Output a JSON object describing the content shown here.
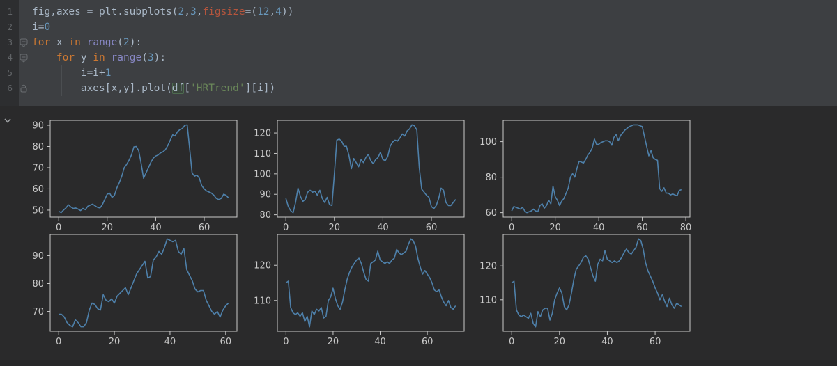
{
  "colors": {
    "cell_background": "#3D3F42",
    "output_background": "#2A2A2B",
    "gutter_background": "#2D2E30",
    "line_number": "#606366",
    "code_default": "#A9B7C6",
    "code_keyword": "#CC7832",
    "code_number": "#6897BB",
    "code_builtin": "#8888C6",
    "code_named_param": "#B4553D",
    "code_string": "#6A8759",
    "plot_line": "#4E80AA",
    "plot_spine": "#C9C9C9",
    "plot_tick_label": "#C9C9C9",
    "divider": "#4F5052",
    "chevron": "#9A9DA0",
    "fold_icon": "#6A6E71"
  },
  "editor": {
    "code_lines": [
      {
        "num": "1",
        "fold": "",
        "tokens": [
          {
            "t": "fig,axes = plt.subplots(",
            "c": "d"
          },
          {
            "t": "2",
            "c": "n"
          },
          {
            "t": ",",
            "c": "d"
          },
          {
            "t": "3",
            "c": "n"
          },
          {
            "t": ",",
            "c": "d"
          },
          {
            "t": "figsize",
            "c": "p"
          },
          {
            "t": "=(",
            "c": "d"
          },
          {
            "t": "12",
            "c": "n"
          },
          {
            "t": ",",
            "c": "d"
          },
          {
            "t": "4",
            "c": "n"
          },
          {
            "t": "))",
            "c": "d"
          }
        ]
      },
      {
        "num": "2",
        "fold": "",
        "tokens": [
          {
            "t": "i=",
            "c": "d"
          },
          {
            "t": "0",
            "c": "n"
          }
        ]
      },
      {
        "num": "3",
        "fold": "fold-collapse",
        "tokens": [
          {
            "t": "for",
            "c": "k"
          },
          {
            "t": " x ",
            "c": "d"
          },
          {
            "t": "in",
            "c": "k"
          },
          {
            "t": " ",
            "c": "d"
          },
          {
            "t": "range",
            "c": "b"
          },
          {
            "t": "(",
            "c": "d"
          },
          {
            "t": "2",
            "c": "n"
          },
          {
            "t": "):",
            "c": "d"
          }
        ]
      },
      {
        "num": "4",
        "fold": "fold-collapse",
        "tokens": [
          {
            "t": "    ",
            "c": "d"
          },
          {
            "t": "for",
            "c": "k"
          },
          {
            "t": " y ",
            "c": "d"
          },
          {
            "t": "in",
            "c": "k"
          },
          {
            "t": " ",
            "c": "d"
          },
          {
            "t": "range",
            "c": "b"
          },
          {
            "t": "(",
            "c": "d"
          },
          {
            "t": "3",
            "c": "n"
          },
          {
            "t": "):",
            "c": "d"
          }
        ]
      },
      {
        "num": "5",
        "fold": "",
        "tokens": [
          {
            "t": "        i=i+",
            "c": "d"
          },
          {
            "t": "1",
            "c": "n"
          }
        ]
      },
      {
        "num": "6",
        "fold": "fold-end",
        "tokens": [
          {
            "t": "        axes[x,y].plot(",
            "c": "d"
          },
          {
            "t": "df",
            "c": "hl"
          },
          {
            "t": "[",
            "c": "d"
          },
          {
            "t": "'HRTrend'",
            "c": "s"
          },
          {
            "t": "][i])",
            "c": "d"
          }
        ]
      }
    ]
  },
  "chart_data": [
    {
      "name": "subplot-1",
      "type": "line",
      "row": 0,
      "col": 0,
      "x_ticks": [
        0,
        20,
        40,
        60
      ],
      "y_ticks": [
        50,
        60,
        70,
        80,
        90
      ],
      "xlim": [
        -3.5,
        73.5
      ],
      "ylim": [
        46.7,
        92.3
      ],
      "values": [
        49.5,
        48.8,
        50,
        51,
        52.5,
        51.5,
        50.8,
        51,
        50.5,
        49.8,
        50.8,
        50.2,
        51.8,
        52.3,
        52.8,
        52,
        51.3,
        51,
        52.5,
        55,
        57.5,
        58,
        56,
        57,
        60.5,
        63,
        66,
        70,
        71.5,
        73.5,
        76,
        79.8,
        80,
        78,
        72,
        65,
        67.5,
        70,
        72.5,
        74.5,
        75.5,
        76,
        77,
        77.5,
        78.5,
        80.5,
        83,
        85.5,
        85,
        87,
        88,
        88.5,
        90,
        90.2,
        79,
        67.5,
        66,
        66.5,
        65,
        61.5,
        60,
        59,
        58.5,
        58,
        57,
        55.5,
        55,
        55.5,
        57.5,
        57,
        55.8
      ]
    },
    {
      "name": "subplot-2",
      "type": "line",
      "row": 0,
      "col": 1,
      "x_ticks": [
        0,
        20,
        40,
        60
      ],
      "y_ticks": [
        80,
        90,
        100,
        110,
        120
      ],
      "xlim": [
        -3.5,
        73.5
      ],
      "ylim": [
        78.85,
        126.15
      ],
      "values": [
        88,
        84,
        82,
        81,
        86,
        93,
        89,
        86.5,
        87.5,
        91,
        92,
        91,
        91.5,
        89.5,
        92,
        88,
        86,
        88.5,
        85,
        84.5,
        100,
        116.5,
        117,
        116,
        113.5,
        113.5,
        109,
        102.5,
        107.5,
        105.5,
        103.5,
        107,
        105.5,
        108,
        109.5,
        106.5,
        105,
        107,
        108,
        110.5,
        107,
        106.5,
        108.5,
        113.5,
        115.5,
        116.5,
        116,
        117.5,
        119.5,
        118.5,
        121,
        122,
        124,
        123.5,
        121.5,
        103,
        92.5,
        91,
        89.5,
        88.5,
        84,
        83,
        84.5,
        88,
        93,
        92,
        86,
        84.5,
        84.5,
        86,
        87.5
      ]
    },
    {
      "name": "subplot-3",
      "type": "line",
      "row": 0,
      "col": 2,
      "x_ticks": [
        0,
        20,
        40,
        60,
        80
      ],
      "y_ticks": [
        60,
        80,
        100
      ],
      "xlim": [
        -3.9,
        81.9
      ],
      "ylim": [
        57.5,
        112
      ],
      "values": [
        61,
        63.5,
        63,
        62.5,
        62,
        63,
        61,
        60,
        60.5,
        61,
        62,
        61,
        60.5,
        64,
        65,
        62.5,
        64,
        67,
        65,
        75,
        69,
        67,
        64,
        66.5,
        68,
        71,
        74,
        80,
        82,
        80,
        85,
        89,
        88.5,
        88,
        90,
        92.5,
        94,
        96.5,
        101.5,
        98.5,
        98.5,
        99.5,
        100,
        100.5,
        100.5,
        100,
        98,
        102.5,
        104,
        100.5,
        103.5,
        105,
        106.5,
        107.5,
        108.5,
        109,
        109.5,
        109.5,
        109.5,
        109,
        108.5,
        103,
        97.5,
        92,
        95,
        91,
        90,
        89.5,
        73.5,
        72,
        74,
        71,
        71,
        70,
        70.5,
        70,
        69.5,
        72.5,
        73
      ]
    },
    {
      "name": "subplot-4",
      "type": "line",
      "row": 1,
      "col": 0,
      "x_ticks": [
        0,
        20,
        40,
        60
      ],
      "y_ticks": [
        70,
        80,
        90
      ],
      "xlim": [
        -3.05,
        64.05
      ],
      "ylim": [
        62.9,
        97.6
      ],
      "values": [
        69,
        69,
        68,
        66,
        65,
        64.5,
        67,
        66,
        64.5,
        64.5,
        66,
        70.5,
        73,
        72.5,
        71,
        70.5,
        76,
        74,
        73.5,
        74.5,
        73,
        75.5,
        76.5,
        77.5,
        78.5,
        76,
        78.5,
        81,
        83.5,
        85,
        86.5,
        88,
        82,
        82.5,
        88.5,
        89.5,
        91.5,
        90.5,
        93,
        96,
        95.5,
        95,
        95.5,
        91.5,
        90.5,
        92.5,
        85,
        83,
        81,
        78,
        77,
        77.5,
        77.5,
        74,
        72,
        70,
        69,
        70,
        68,
        70.5,
        72,
        73
      ]
    },
    {
      "name": "subplot-5",
      "type": "line",
      "row": 1,
      "col": 1,
      "x_ticks": [
        0,
        20,
        40,
        60
      ],
      "y_ticks": [
        110,
        120
      ],
      "xlim": [
        -3.65,
        75.65
      ],
      "ylim": [
        101.25,
        128.75
      ],
      "values": [
        115,
        115.5,
        108,
        106.5,
        106,
        106.5,
        105.5,
        106.5,
        104,
        105.5,
        102.5,
        107,
        106,
        107.5,
        107,
        108,
        105,
        105.5,
        110,
        111,
        113.5,
        110.5,
        108.5,
        107.5,
        109.5,
        113,
        116,
        118,
        119.5,
        120.5,
        121.5,
        122,
        120.5,
        118,
        116,
        115.5,
        120.5,
        121,
        121.5,
        124,
        121.5,
        121,
        120.5,
        121,
        120.5,
        121.5,
        122,
        124.5,
        123.5,
        123,
        123.5,
        124,
        126,
        127.5,
        127,
        125.5,
        122,
        119.5,
        117.5,
        118.5,
        117.5,
        116.5,
        115,
        113,
        112.5,
        113,
        111,
        109.5,
        108.5,
        110,
        108,
        107.5,
        108.5
      ]
    },
    {
      "name": "subplot-6",
      "type": "line",
      "row": 1,
      "col": 2,
      "x_ticks": [
        0,
        20,
        40,
        60
      ],
      "y_ticks": [
        110,
        120
      ],
      "xlim": [
        -3.55,
        74.55
      ],
      "ylim": [
        100.7,
        129.3
      ],
      "values": [
        115,
        115.5,
        107,
        105.5,
        105,
        105.5,
        105,
        104.5,
        106,
        103,
        102,
        106.5,
        105,
        107,
        107.5,
        107.5,
        104,
        106,
        110,
        112,
        113.5,
        112,
        108,
        107,
        108.5,
        112,
        116,
        119,
        120,
        121,
        122.5,
        123,
        122,
        119.5,
        117,
        115.5,
        120.5,
        122,
        121.5,
        124.5,
        122,
        121.5,
        121,
        121.5,
        121,
        121.5,
        122.5,
        124,
        125,
        124,
        123.5,
        124.5,
        125.5,
        128,
        127.5,
        125,
        121,
        118.5,
        117,
        115.5,
        113.5,
        112,
        110,
        111.5,
        109.5,
        108,
        110.5,
        108.5,
        107.5,
        109,
        108.5,
        108
      ]
    }
  ]
}
